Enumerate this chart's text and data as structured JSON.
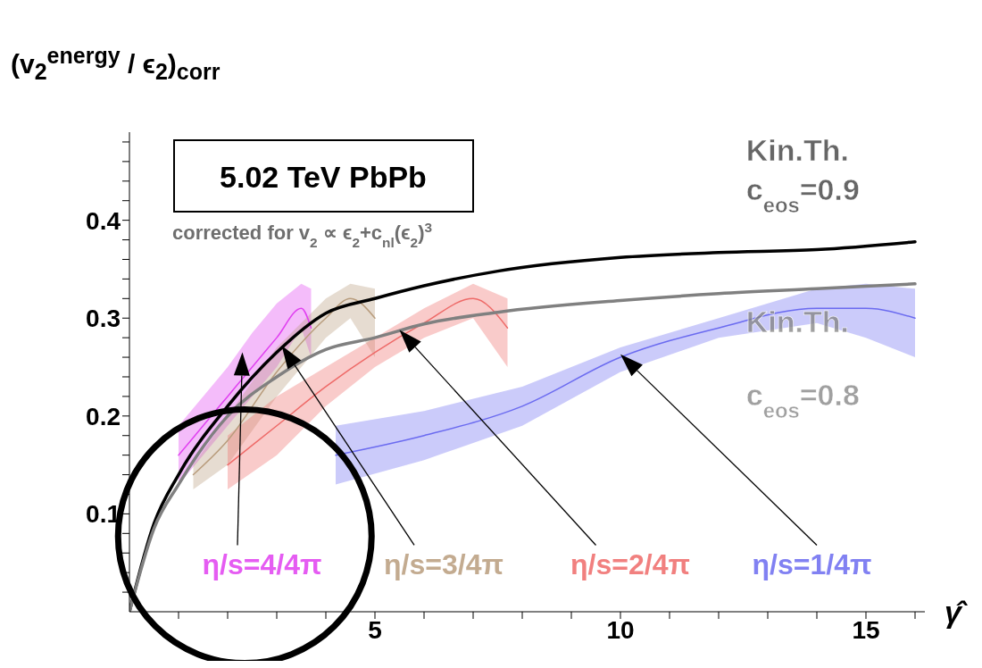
{
  "chart_data": {
    "type": "line",
    "ylabel": "(v$_{2}$$^{energy}$ / ϵ$_{2}$)$_{corr}$",
    "xlabel": "γ̂",
    "annotations": [
      "5.02 TeV PbPb",
      "corrected for v$_{2}$ ∝ ϵ$_{2}$+c$_{nl}$(ϵ$_{2}$)$^{3}$"
    ],
    "xlim": [
      0,
      16.2
    ],
    "ylim": [
      0,
      0.49
    ],
    "xticks": [
      {
        "value": 1,
        "label": null
      },
      {
        "value": 2,
        "label": null
      },
      {
        "value": 3,
        "label": null
      },
      {
        "value": 4,
        "label": null
      },
      5,
      {
        "value": 6,
        "label": null
      },
      {
        "value": 7,
        "label": null
      },
      {
        "value": 8,
        "label": null
      },
      {
        "value": 9,
        "label": null
      },
      10,
      {
        "value": 11,
        "label": null
      },
      {
        "value": 12,
        "label": null
      },
      {
        "value": 13,
        "label": null
      },
      {
        "value": 14,
        "label": null
      },
      15,
      {
        "value": 16,
        "label": null
      }
    ],
    "yticks": [
      {
        "value": 0.02,
        "label": null
      },
      {
        "value": 0.04,
        "label": null
      },
      {
        "value": 0.06,
        "label": null
      },
      {
        "value": 0.08,
        "label": null
      },
      0.1,
      {
        "value": 0.12,
        "label": null
      },
      {
        "value": 0.14,
        "label": null
      },
      {
        "value": 0.16,
        "label": null
      },
      {
        "value": 0.18,
        "label": null
      },
      0.2,
      {
        "value": 0.22,
        "label": null
      },
      {
        "value": 0.24,
        "label": null
      },
      {
        "value": 0.26,
        "label": null
      },
      {
        "value": 0.28,
        "label": null
      },
      0.3,
      {
        "value": 0.32,
        "label": null
      },
      {
        "value": 0.34,
        "label": null
      },
      {
        "value": 0.36,
        "label": null
      },
      {
        "value": 0.38,
        "label": null
      },
      0.4,
      {
        "value": 0.42,
        "label": null
      },
      {
        "value": 0.44,
        "label": null
      },
      {
        "value": 0.46,
        "label": null
      },
      {
        "value": 0.48,
        "label": null
      }
    ],
    "grid": false,
    "legend": false,
    "marker": "none",
    "line_style": "solid",
    "series": [
      {
        "name": "η/s=4/4π",
        "color": "#e040f0",
        "x": [
          1,
          1.5,
          2,
          2.5,
          3,
          3.5,
          3.7
        ],
        "values": [
          0.16,
          0.19,
          0.22,
          0.25,
          0.28,
          0.31,
          0.29
        ],
        "lower": [
          0.13,
          0.16,
          0.19,
          0.22,
          0.25,
          0.29,
          0.26
        ],
        "upper": [
          0.19,
          0.22,
          0.25,
          0.285,
          0.315,
          0.335,
          0.33
        ]
      },
      {
        "name": "η/s=3/4π",
        "color": "#b89c7c",
        "x": [
          1.3,
          2,
          3,
          4,
          4.5,
          5
        ],
        "values": [
          0.14,
          0.175,
          0.245,
          0.3,
          0.32,
          0.3
        ],
        "lower": [
          0.125,
          0.15,
          0.22,
          0.28,
          0.3,
          0.26
        ],
        "upper": [
          0.15,
          0.2,
          0.27,
          0.32,
          0.335,
          0.33
        ]
      },
      {
        "name": "η/s=2/4π",
        "color": "#ee6a68",
        "x": [
          2,
          3,
          4,
          5,
          6,
          7,
          7.7
        ],
        "values": [
          0.15,
          0.19,
          0.23,
          0.265,
          0.295,
          0.32,
          0.29
        ],
        "lower": [
          0.125,
          0.16,
          0.21,
          0.25,
          0.28,
          0.3,
          0.25
        ],
        "upper": [
          0.18,
          0.22,
          0.25,
          0.28,
          0.31,
          0.335,
          0.32
        ]
      },
      {
        "name": "η/s=1/4π",
        "color": "#6b6bf0",
        "x": [
          4.2,
          6,
          8,
          10,
          12,
          14,
          15,
          16
        ],
        "values": [
          0.16,
          0.18,
          0.21,
          0.26,
          0.29,
          0.31,
          0.31,
          0.3
        ],
        "lower": [
          0.13,
          0.155,
          0.19,
          0.245,
          0.28,
          0.295,
          0.28,
          0.26
        ],
        "upper": [
          0.19,
          0.205,
          0.23,
          0.27,
          0.3,
          0.33,
          0.335,
          0.33
        ]
      },
      {
        "name": "Kin.Th. c$_{eos}$=0.9",
        "color": "#000000",
        "x": [
          0,
          0.5,
          1,
          2,
          3,
          4,
          5,
          6,
          7.5,
          10,
          12,
          14,
          16
        ],
        "values": [
          0,
          0.09,
          0.14,
          0.21,
          0.265,
          0.305,
          0.32,
          0.333,
          0.348,
          0.362,
          0.367,
          0.37,
          0.378
        ]
      },
      {
        "name": "Kin.Th. c$_{eos}$=0.8",
        "color": "#808080",
        "x": [
          0,
          0.5,
          1,
          2,
          3,
          4,
          5,
          6,
          7.5,
          10,
          12,
          14,
          16
        ],
        "values": [
          0,
          0.085,
          0.13,
          0.2,
          0.24,
          0.268,
          0.28,
          0.294,
          0.306,
          0.318,
          0.325,
          0.33,
          0.335
        ]
      }
    ]
  }
}
